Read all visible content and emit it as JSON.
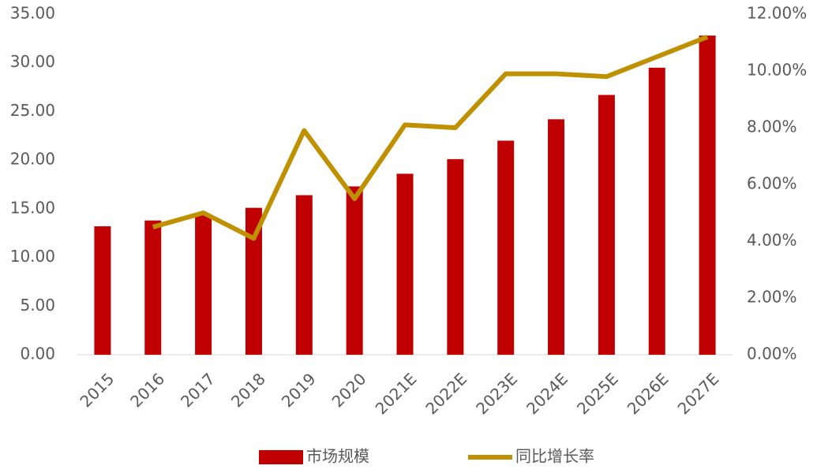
{
  "chart_data": {
    "type": "bar_line",
    "categories": [
      "2015",
      "2016",
      "2017",
      "2018",
      "2019",
      "2020",
      "2021E",
      "2022E",
      "2023E",
      "2024E",
      "2025E",
      "2026E",
      "2027E"
    ],
    "series": [
      {
        "name": "市场规模",
        "type": "bar",
        "color": "#c00000",
        "values": [
          13.2,
          13.8,
          14.4,
          15.1,
          16.4,
          17.3,
          18.6,
          20.1,
          22.0,
          24.2,
          26.7,
          29.5,
          32.8
        ]
      },
      {
        "name": "同比增长率",
        "type": "line",
        "axis": "y2",
        "color": "#bf9000",
        "values": [
          null,
          4.5,
          5.0,
          4.1,
          7.9,
          5.5,
          8.1,
          8.0,
          9.9,
          9.9,
          9.8,
          10.5,
          11.2
        ]
      }
    ],
    "ylim": [
      0,
      35
    ],
    "yticks": [
      {
        "value": 0,
        "label": "0.00"
      },
      {
        "value": 5,
        "label": "5.00"
      },
      {
        "value": 10,
        "label": "10.00"
      },
      {
        "value": 15,
        "label": "15.00"
      },
      {
        "value": 20,
        "label": "20.00"
      },
      {
        "value": 25,
        "label": "25.00"
      },
      {
        "value": 30,
        "label": "30.00"
      },
      {
        "value": 35,
        "label": "35.00"
      }
    ],
    "y2lim": [
      0,
      12
    ],
    "y2ticks": [
      {
        "value": 0,
        "label": "0.00%"
      },
      {
        "value": 2,
        "label": "2.00%"
      },
      {
        "value": 4,
        "label": "4.00%"
      },
      {
        "value": 6,
        "label": "6.00%"
      },
      {
        "value": 8,
        "label": "8.00%"
      },
      {
        "value": 10,
        "label": "10.00%"
      },
      {
        "value": 12,
        "label": "12.00%"
      }
    ],
    "legend": "bottom"
  }
}
